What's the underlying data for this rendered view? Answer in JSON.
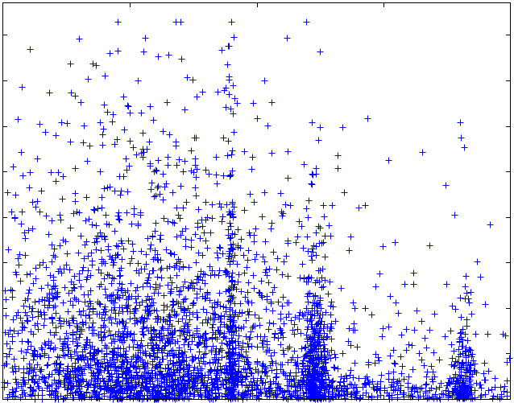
{
  "chart_data": {
    "type": "scatter",
    "marker": "+",
    "color": "#0000ff",
    "title": "",
    "xlabel": "",
    "ylabel": "",
    "xlim": [
      0,
      100
    ],
    "ylim": [
      0,
      100
    ],
    "grid": false,
    "legend": "none",
    "ticks_labeled": false,
    "y_ticks": [
      11.5,
      23,
      34.5,
      46,
      57.5,
      69,
      80.5,
      92
    ],
    "x_ticks": [
      25,
      50,
      75
    ],
    "clusters": [
      {
        "x_center": 28,
        "x_spread": 16,
        "y_scale": 18,
        "count": 2600
      },
      {
        "x_center": 45,
        "x_spread": 0.4,
        "y_scale": 30,
        "count": 170
      },
      {
        "x_center": 61.5,
        "x_spread": 1.4,
        "y_scale": 12,
        "count": 420
      },
      {
        "x_center": 90.5,
        "x_spread": 1.3,
        "y_scale": 7,
        "count": 190
      },
      {
        "x_center": 70,
        "x_spread": 22,
        "y_scale": 5,
        "count": 520
      }
    ],
    "points": [
      [
        22.6,
        95.4
      ],
      [
        34.1,
        95.4
      ],
      [
        34.9,
        95.4
      ],
      [
        45.0,
        95.4
      ],
      [
        59.8,
        95.4
      ],
      [
        62.5,
        87.8
      ],
      [
        27.6,
        87.8
      ],
      [
        18.3,
        84.4
      ],
      [
        51.5,
        80.5
      ],
      [
        26.6,
        80.5
      ],
      [
        14.1,
        76.7
      ],
      [
        15.2,
        75.0
      ],
      [
        24.7,
        74.0
      ],
      [
        28.9,
        74.0
      ],
      [
        32.2,
        75.0
      ],
      [
        7.1,
        69.6
      ],
      [
        11.4,
        69.9
      ],
      [
        60.9,
        69.9
      ],
      [
        66.9,
        68.6
      ],
      [
        71.8,
        71.0
      ],
      [
        90.1,
        69.9
      ],
      [
        10.4,
        66.7
      ],
      [
        13.2,
        65.0
      ],
      [
        22.4,
        65.6
      ],
      [
        34.1,
        65.0
      ],
      [
        90.3,
        66.0
      ],
      [
        66.0,
        61.5
      ],
      [
        76.0,
        60.4
      ],
      [
        82.6,
        62.5
      ],
      [
        91.0,
        63.7
      ],
      [
        9.4,
        57.3
      ],
      [
        14.2,
        58.4
      ],
      [
        23.7,
        56.4
      ],
      [
        38.1,
        58.1
      ],
      [
        65.9,
        58.4
      ],
      [
        56.1,
        55.9
      ],
      [
        67.2,
        52.3
      ],
      [
        87.3,
        54.0
      ],
      [
        55.6,
        49.1
      ],
      [
        59.8,
        48.1
      ],
      [
        64.9,
        48.9
      ],
      [
        70.1,
        48.3
      ],
      [
        89.1,
        46.5
      ],
      [
        96.1,
        44.1
      ],
      [
        52.8,
        43.0
      ],
      [
        58.8,
        43.8
      ],
      [
        68.6,
        41.0
      ],
      [
        74.9,
        38.7
      ],
      [
        77.3,
        39.6
      ],
      [
        84.1,
        38.9
      ],
      [
        49.5,
        39.8
      ],
      [
        51.7,
        39.8
      ],
      [
        54.0,
        35.5
      ],
      [
        74.2,
        31.7
      ],
      [
        79.1,
        29.1
      ],
      [
        80.9,
        29.1
      ],
      [
        87.4,
        29.1
      ],
      [
        94.1,
        30.9
      ],
      [
        52.0,
        31.3
      ],
      [
        56.0,
        24.4
      ],
      [
        69.0,
        24.4
      ],
      [
        77.4,
        24.4
      ],
      [
        81.6,
        22.4
      ],
      [
        85.1,
        21.6
      ],
      [
        95.1,
        24.0
      ],
      [
        99.1,
        16.1
      ],
      [
        2.5,
        21.1
      ],
      [
        0.6,
        14.0
      ],
      [
        3.9,
        7.7
      ],
      [
        99.4,
        9.3
      ]
    ]
  }
}
